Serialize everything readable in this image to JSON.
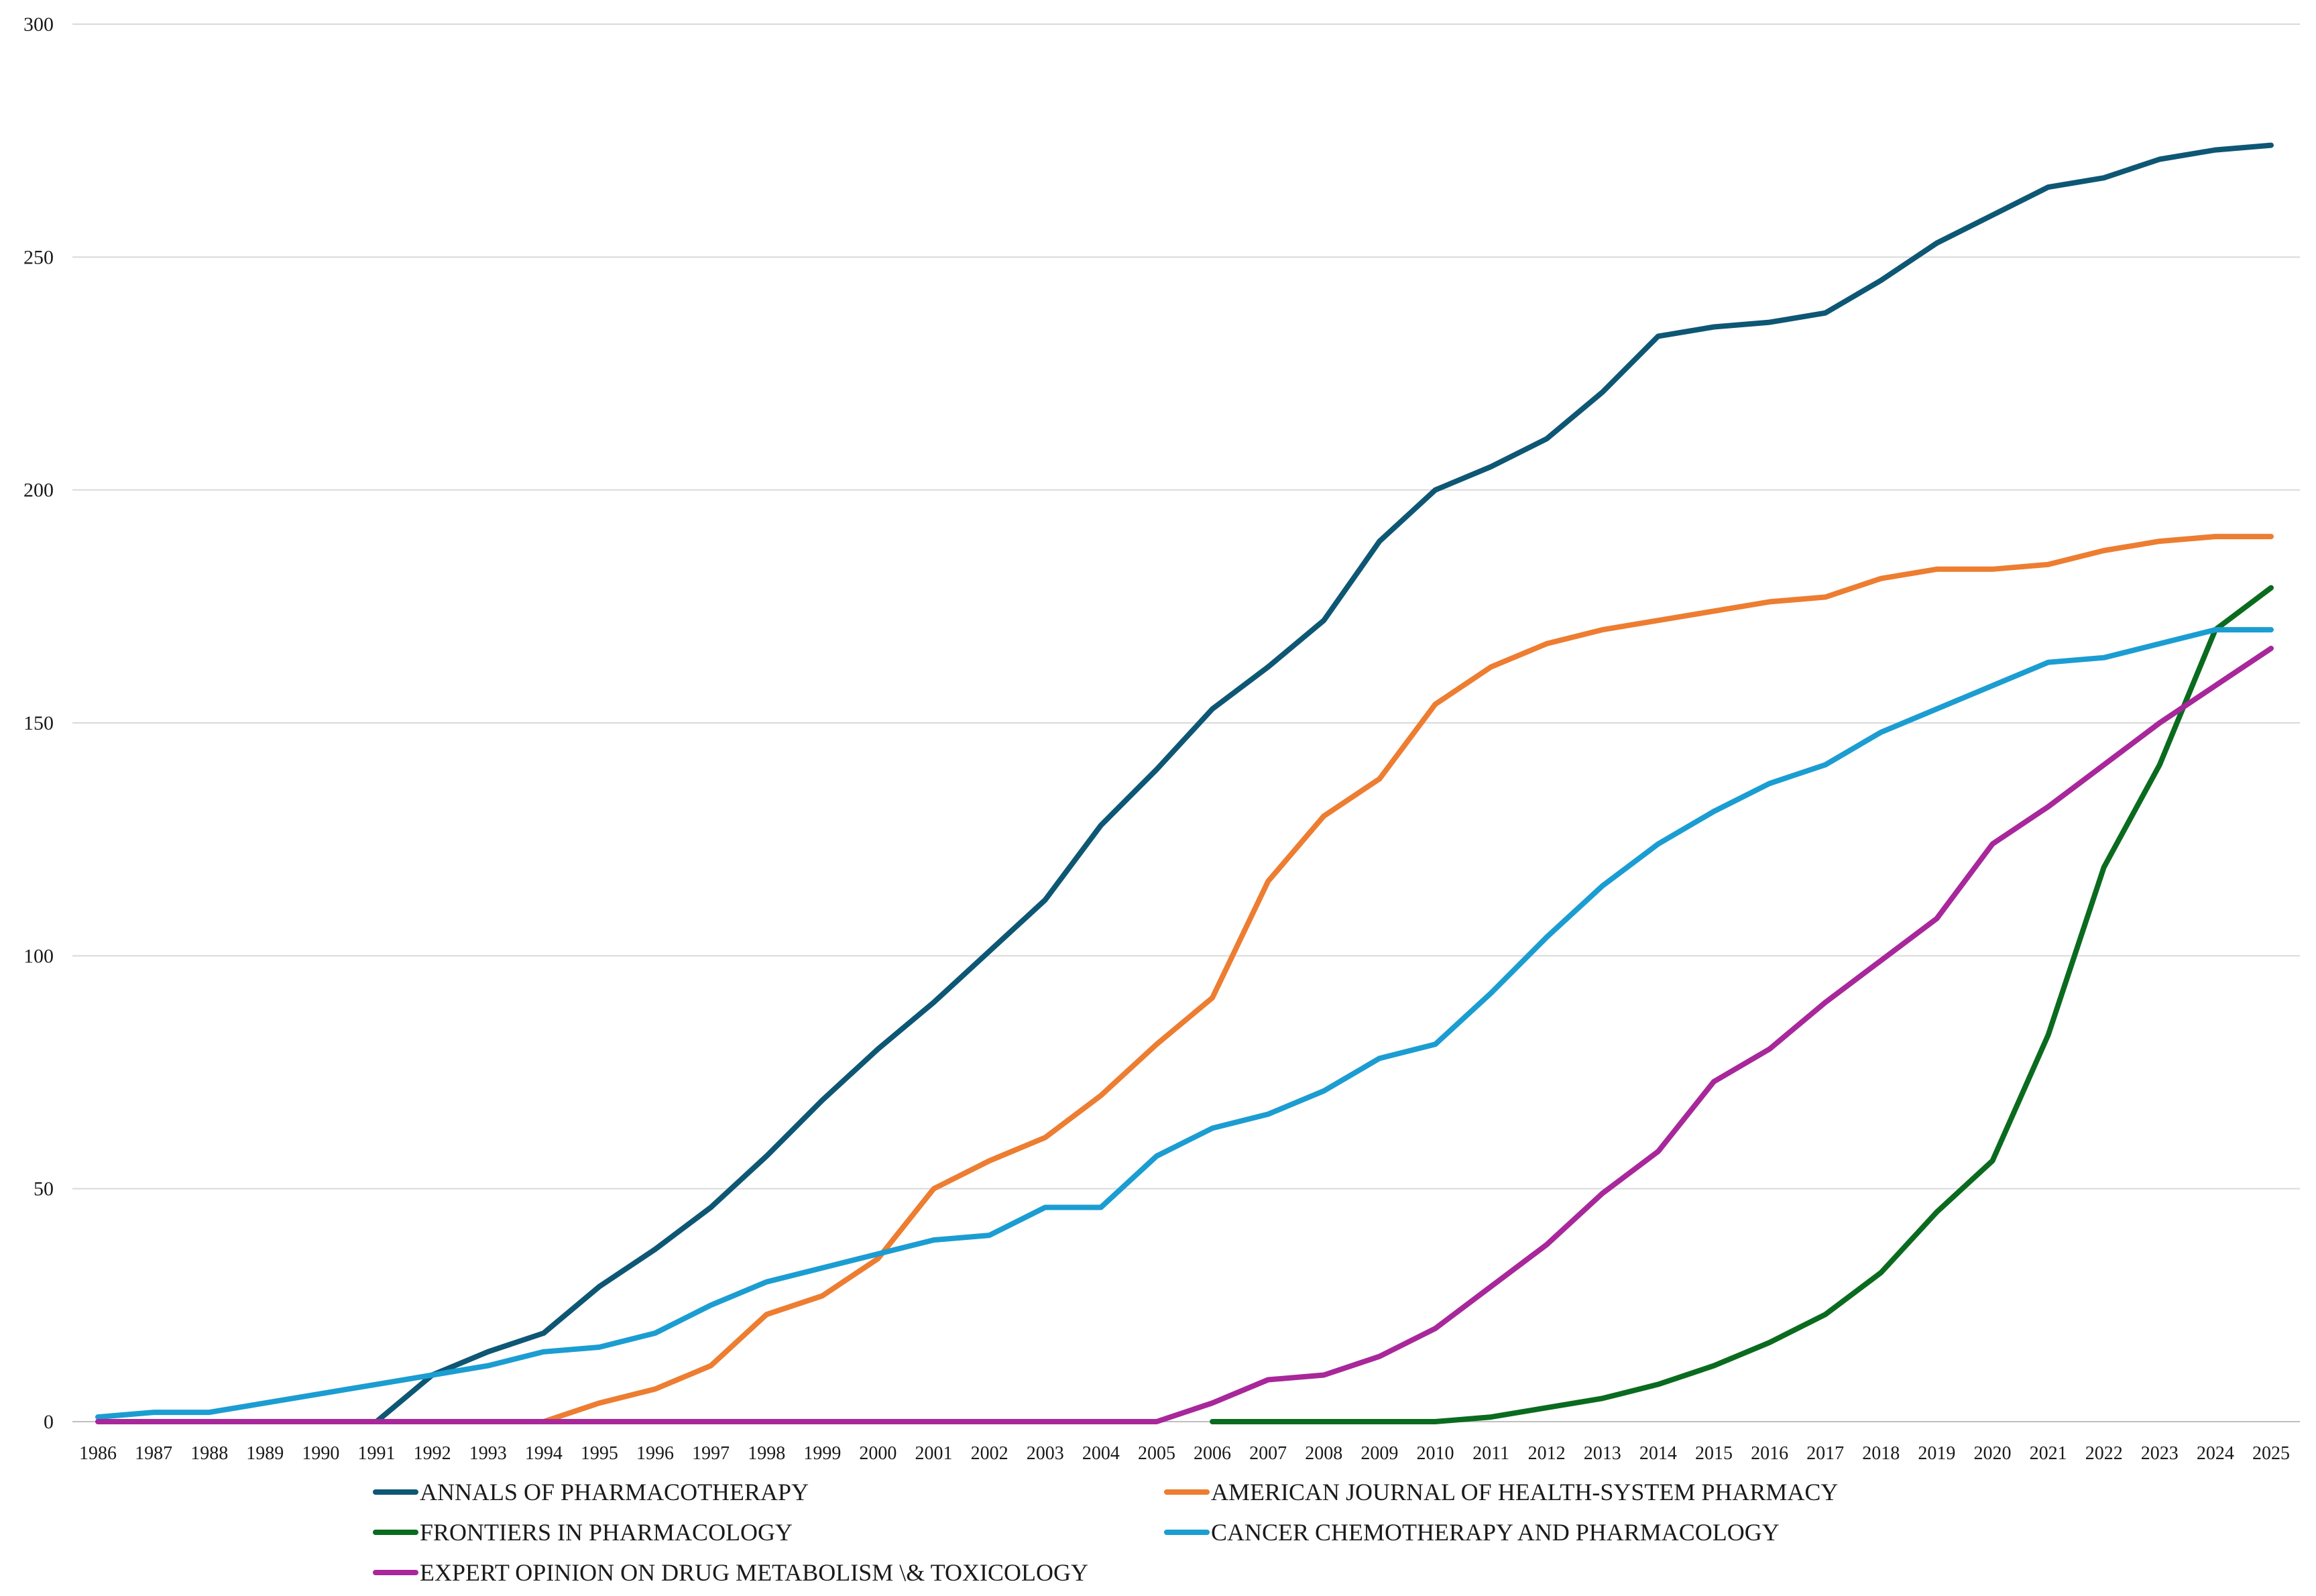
{
  "chart_data": {
    "type": "line",
    "title": "",
    "xlabel": "",
    "ylabel": "",
    "ylim": [
      0,
      300
    ],
    "yticks": [
      0,
      50,
      100,
      150,
      200,
      250,
      300
    ],
    "grid": "horizontal",
    "legend_position": "bottom",
    "categories": [
      "1986",
      "1987",
      "1988",
      "1989",
      "1990",
      "1991",
      "1992",
      "1993",
      "1994",
      "1995",
      "1996",
      "1997",
      "1998",
      "1999",
      "2000",
      "2001",
      "2002",
      "2003",
      "2004",
      "2005",
      "2006",
      "2007",
      "2008",
      "2009",
      "2010",
      "2011",
      "2012",
      "2013",
      "2014",
      "2015",
      "2016",
      "2017",
      "2018",
      "2019",
      "2020",
      "2021",
      "2022",
      "2023",
      "2024",
      "2025"
    ],
    "series": [
      {
        "name": "ANNALS OF PHARMACOTHERAPY",
        "color": "#0d5774",
        "values": [
          null,
          null,
          null,
          null,
          null,
          0,
          10,
          15,
          19,
          29,
          37,
          46,
          57,
          69,
          80,
          90,
          101,
          112,
          128,
          140,
          153,
          162,
          172,
          189,
          200,
          205,
          211,
          221,
          233,
          235,
          236,
          238,
          245,
          253,
          259,
          265,
          267,
          271,
          273,
          274
        ]
      },
      {
        "name": "AMERICAN JOURNAL OF HEALTH-SYSTEM PHARMACY",
        "color": "#ed7d31",
        "values": [
          null,
          null,
          null,
          null,
          null,
          null,
          null,
          null,
          0,
          4,
          7,
          12,
          23,
          27,
          35,
          50,
          56,
          61,
          70,
          81,
          91,
          116,
          130,
          138,
          154,
          162,
          167,
          170,
          172,
          174,
          176,
          177,
          181,
          183,
          183,
          184,
          187,
          189,
          190,
          190
        ]
      },
      {
        "name": "FRONTIERS IN PHARMACOLOGY",
        "color": "#0a6b1f",
        "values": [
          null,
          null,
          null,
          null,
          null,
          null,
          null,
          null,
          null,
          null,
          null,
          null,
          null,
          null,
          null,
          null,
          null,
          null,
          null,
          null,
          0,
          0,
          0,
          0,
          0,
          1,
          3,
          5,
          8,
          12,
          17,
          23,
          32,
          45,
          56,
          83,
          119,
          141,
          170,
          179
        ]
      },
      {
        "name": "CANCER CHEMOTHERAPY AND PHARMACOLOGY",
        "color": "#1b9dd2",
        "values": [
          1,
          2,
          2,
          4,
          6,
          8,
          10,
          12,
          15,
          16,
          19,
          25,
          30,
          33,
          36,
          39,
          40,
          46,
          46,
          57,
          63,
          66,
          71,
          78,
          81,
          92,
          104,
          115,
          124,
          131,
          137,
          141,
          148,
          153,
          158,
          163,
          164,
          167,
          170,
          170
        ]
      },
      {
        "name": "EXPERT OPINION ON DRUG METABOLISM \\& TOXICOLOGY",
        "color": "#a8279a",
        "values": [
          0,
          0,
          0,
          0,
          0,
          0,
          0,
          0,
          0,
          0,
          0,
          0,
          0,
          0,
          0,
          0,
          0,
          0,
          0,
          0,
          4,
          9,
          10,
          14,
          20,
          29,
          38,
          49,
          58,
          73,
          80,
          90,
          99,
          108,
          124,
          132,
          141,
          150,
          158,
          166
        ]
      }
    ]
  }
}
